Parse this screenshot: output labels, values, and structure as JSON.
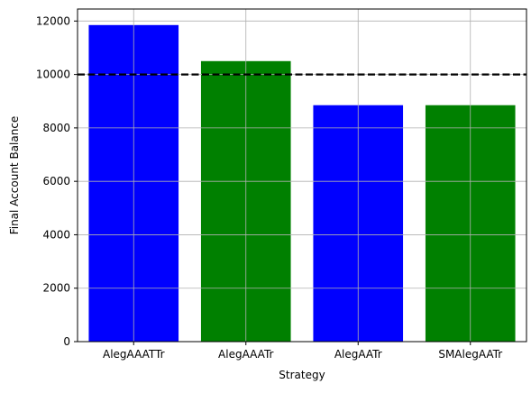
{
  "chart_data": {
    "type": "bar",
    "title": "",
    "xlabel": "Strategy",
    "ylabel": "Final Account Balance",
    "categories": [
      "AlegAAATTr",
      "AlegAAATr",
      "AlegAATr",
      "SMAlegAATr"
    ],
    "values": [
      11850,
      10500,
      8850,
      8850
    ],
    "bar_colors": [
      "#0000ff",
      "#008000",
      "#0000ff",
      "#008000"
    ],
    "ylim": [
      0,
      12450
    ],
    "yticks": [
      0,
      2000,
      4000,
      6000,
      8000,
      10000,
      12000
    ],
    "grid": true,
    "reference_line": {
      "value": 10000,
      "color": "#000000",
      "style": "dashed"
    }
  }
}
